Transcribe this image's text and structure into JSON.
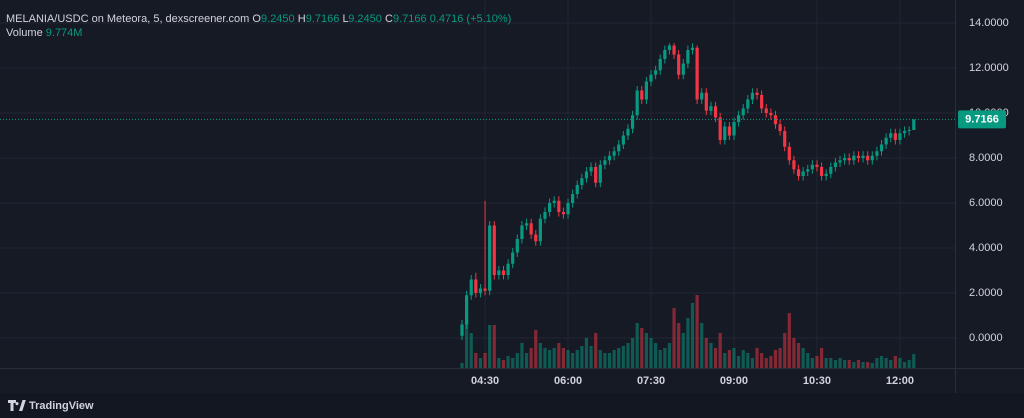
{
  "chart_data": {
    "type": "candlestick",
    "title": "MELANIA/USDC on Meteora, 5, dexscreener.com",
    "ohlc_labels": [
      "O",
      "H",
      "L",
      "C"
    ],
    "ohlc_values": [
      "9.2450",
      "9.7166",
      "9.2450",
      "9.7166"
    ],
    "change": "0.4716 (+5.10%)",
    "volume_label": "Volume",
    "volume_value": "9.774M",
    "up_color": "#089981",
    "down_color": "#f23645",
    "grid": true,
    "ylim": [
      -1.3333,
      15.0222
    ],
    "yticks": [
      {
        "value": 0,
        "label": "0.0000"
      },
      {
        "value": 2,
        "label": "2.0000"
      },
      {
        "value": 4,
        "label": "4.0000"
      },
      {
        "value": 6,
        "label": "6.0000"
      },
      {
        "value": 8,
        "label": "8.0000"
      },
      {
        "value": 10,
        "label": "10.0000"
      },
      {
        "value": 12,
        "label": "12.0000"
      },
      {
        "value": 14,
        "label": "14.0000"
      }
    ],
    "categories": [
      null,
      null,
      null,
      null,
      null,
      "04:30",
      null,
      null,
      null,
      null,
      null,
      null,
      null,
      null,
      null,
      null,
      null,
      null,
      null,
      null,
      null,
      null,
      null,
      "06:00",
      null,
      null,
      null,
      null,
      null,
      null,
      null,
      null,
      null,
      null,
      null,
      null,
      null,
      null,
      null,
      null,
      null,
      "07:30",
      null,
      null,
      null,
      null,
      null,
      null,
      null,
      null,
      null,
      null,
      null,
      null,
      null,
      null,
      null,
      null,
      null,
      "09:00",
      null,
      null,
      null,
      null,
      null,
      null,
      null,
      null,
      null,
      null,
      null,
      null,
      null,
      null,
      null,
      null,
      null,
      "10:30",
      null,
      null,
      null,
      null,
      null,
      null,
      null,
      null,
      null,
      null,
      null,
      null,
      null,
      null,
      null,
      null,
      null,
      "12:00",
      null,
      null,
      null
    ],
    "open": [
      0.1,
      0.6,
      1.9,
      2.6,
      2.0,
      2.2,
      2.1,
      5.0,
      2.8,
      3.0,
      2.8,
      3.3,
      3.8,
      4.4,
      5.0,
      5.1,
      4.6,
      4.3,
      5.3,
      5.6,
      6.0,
      6.1,
      5.6,
      5.5,
      6.0,
      6.4,
      6.8,
      7.1,
      7.4,
      7.6,
      6.9,
      7.7,
      7.9,
      8.1,
      8.3,
      8.6,
      9.0,
      9.3,
      9.9,
      11.0,
      10.6,
      11.4,
      11.7,
      11.9,
      12.4,
      12.8,
      13.0,
      12.6,
      11.7,
      12.2,
      12.8,
      12.9,
      10.6,
      10.9,
      10.1,
      10.3,
      9.8,
      8.8,
      9.4,
      9.0,
      9.6,
      9.9,
      10.2,
      10.6,
      10.9,
      10.8,
      10.2,
      10.0,
      9.9,
      9.5,
      9.2,
      8.5,
      7.9,
      7.5,
      7.2,
      7.4,
      7.5,
      7.7,
      7.6,
      7.2,
      7.3,
      7.6,
      7.8,
      7.9,
      8.0,
      7.9,
      8.1,
      8.0,
      8.1,
      7.9,
      8.1,
      8.3,
      8.6,
      8.9,
      9.1,
      8.8,
      9.1,
      9.2,
      9.245
    ],
    "high": [
      0.8,
      2.1,
      2.8,
      2.9,
      2.4,
      6.1,
      5.2,
      5.2,
      3.2,
      3.2,
      3.5,
      4.0,
      4.6,
      5.2,
      5.3,
      5.3,
      4.8,
      5.5,
      5.8,
      6.2,
      6.3,
      6.3,
      5.8,
      6.2,
      6.6,
      7.0,
      7.3,
      7.6,
      7.8,
      7.8,
      7.9,
      8.1,
      8.3,
      8.5,
      8.8,
      9.2,
      9.5,
      10.1,
      11.2,
      11.2,
      11.6,
      11.9,
      12.1,
      12.6,
      13.0,
      13.1,
      13.1,
      12.8,
      12.4,
      13.0,
      13.1,
      13.0,
      11.1,
      11.1,
      10.5,
      10.5,
      10.0,
      9.6,
      9.6,
      9.8,
      10.1,
      10.4,
      10.8,
      11.1,
      11.1,
      11.0,
      10.4,
      10.2,
      10.1,
      9.7,
      9.4,
      8.7,
      8.1,
      7.7,
      7.6,
      7.7,
      7.9,
      7.9,
      7.8,
      7.5,
      7.8,
      8.0,
      8.1,
      8.2,
      8.2,
      8.3,
      8.3,
      8.3,
      8.3,
      8.3,
      8.5,
      8.8,
      9.1,
      9.3,
      9.3,
      9.3,
      9.4,
      9.4,
      9.7166
    ],
    "low": [
      -0.1,
      0.4,
      1.7,
      1.8,
      1.8,
      1.9,
      1.9,
      2.6,
      2.6,
      2.6,
      2.6,
      3.1,
      3.6,
      4.2,
      4.8,
      4.4,
      4.1,
      4.1,
      5.1,
      5.4,
      5.8,
      5.4,
      5.3,
      5.3,
      5.8,
      6.2,
      6.6,
      6.9,
      7.2,
      6.7,
      6.7,
      7.5,
      7.7,
      7.9,
      8.1,
      8.4,
      8.8,
      9.1,
      9.7,
      10.4,
      10.4,
      11.2,
      11.5,
      11.7,
      12.2,
      12.6,
      12.4,
      11.5,
      11.5,
      12.0,
      12.6,
      10.4,
      10.4,
      9.9,
      9.9,
      9.6,
      8.6,
      8.6,
      8.8,
      8.8,
      9.4,
      9.7,
      10.0,
      10.4,
      10.6,
      10.0,
      9.8,
      9.7,
      9.3,
      9.0,
      8.3,
      7.7,
      7.3,
      7.0,
      7.0,
      7.2,
      7.3,
      7.4,
      7.0,
      7.0,
      7.1,
      7.4,
      7.6,
      7.7,
      7.7,
      7.7,
      7.8,
      7.8,
      7.7,
      7.7,
      7.9,
      8.1,
      8.4,
      8.7,
      8.6,
      8.6,
      8.9,
      9.0,
      9.245
    ],
    "close": [
      0.6,
      1.9,
      2.6,
      2.0,
      2.2,
      2.1,
      5.0,
      2.8,
      3.0,
      2.8,
      3.3,
      3.8,
      4.4,
      5.0,
      5.1,
      4.6,
      4.3,
      5.3,
      5.6,
      6.0,
      6.1,
      5.6,
      5.5,
      6.0,
      6.4,
      6.8,
      7.1,
      7.4,
      7.6,
      6.9,
      7.7,
      7.9,
      8.1,
      8.3,
      8.6,
      9.0,
      9.3,
      9.9,
      11.0,
      10.6,
      11.4,
      11.7,
      11.9,
      12.4,
      12.8,
      13.0,
      12.6,
      11.7,
      12.2,
      12.8,
      12.9,
      10.6,
      10.9,
      10.1,
      10.3,
      9.8,
      8.8,
      9.4,
      9.0,
      9.6,
      9.9,
      10.2,
      10.6,
      10.9,
      10.8,
      10.2,
      10.0,
      9.9,
      9.5,
      9.2,
      8.5,
      7.9,
      7.5,
      7.2,
      7.4,
      7.5,
      7.7,
      7.6,
      7.2,
      7.3,
      7.6,
      7.8,
      7.9,
      8.0,
      7.9,
      8.1,
      8.0,
      8.1,
      7.9,
      8.1,
      8.3,
      8.6,
      8.9,
      9.1,
      8.8,
      9.1,
      9.2,
      9.245,
      9.7166
    ],
    "volume": [
      3.5,
      35,
      24.5,
      10.5,
      7,
      10.5,
      30.1,
      30.1,
      7,
      5.6,
      8.4,
      7,
      10.5,
      17.5,
      10.5,
      14,
      26.6,
      17.5,
      14,
      12.6,
      14,
      17.5,
      14,
      12.6,
      10.5,
      12.6,
      15.4,
      21,
      15.4,
      24.5,
      12.6,
      10.5,
      10.5,
      12.6,
      14,
      15.4,
      17.5,
      21,
      31.5,
      28,
      24.5,
      21,
      17.5,
      12.6,
      14,
      17.5,
      42,
      31.5,
      24.5,
      35,
      45.5,
      51.1,
      31.5,
      21,
      17.5,
      14,
      24.5,
      10.5,
      12.6,
      14,
      8.4,
      12.6,
      10.5,
      7,
      14,
      10.5,
      7,
      8.4,
      12.6,
      14,
      24.5,
      38.5,
      21,
      17.5,
      14,
      10.5,
      7,
      8.4,
      14,
      7,
      7,
      5.6,
      7,
      5.6,
      5.6,
      4.2,
      5.6,
      4.2,
      4.2,
      3.5,
      7,
      8.4,
      7,
      5.6,
      8.4,
      7,
      4.2,
      5.6,
      9.774
    ]
  },
  "footer": {
    "brand": "TradingView"
  }
}
